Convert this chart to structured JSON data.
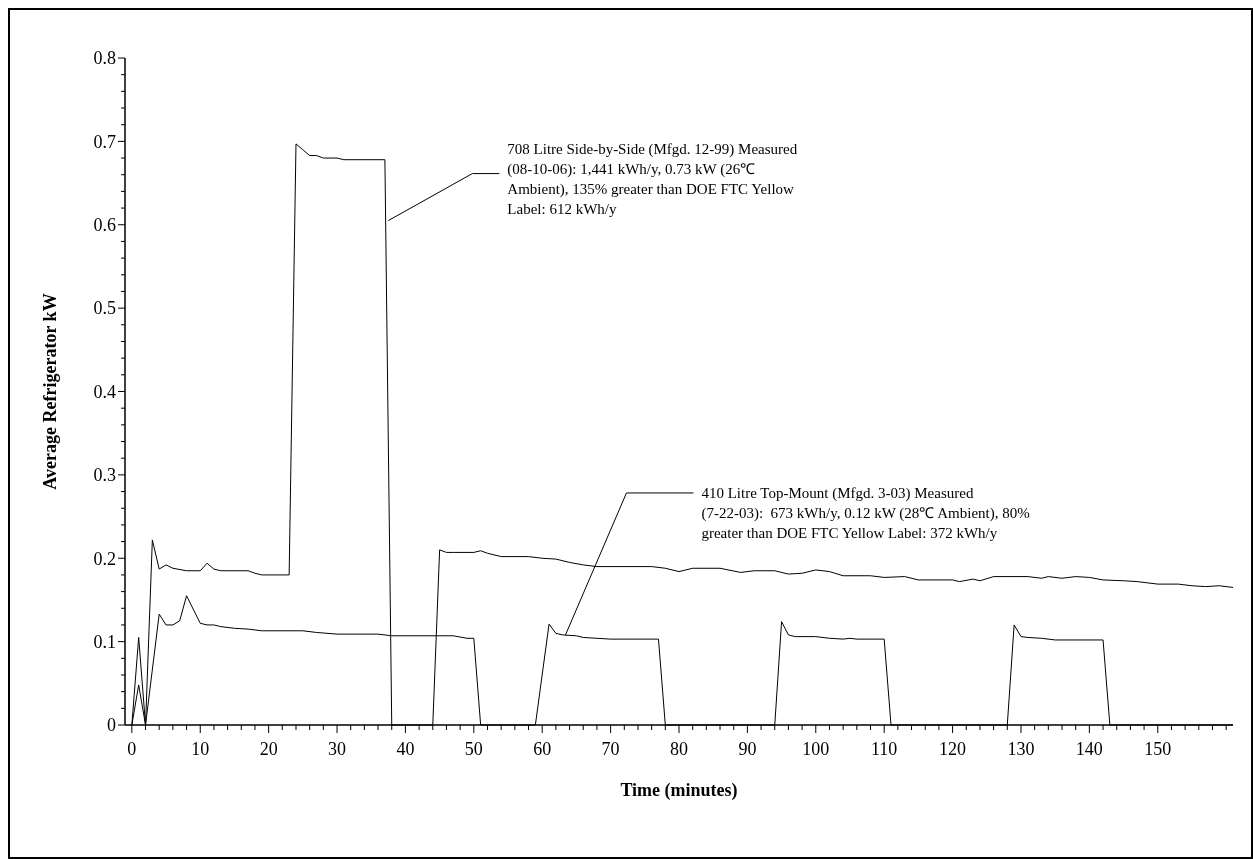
{
  "chart_data": {
    "type": "line",
    "xlabel": "Time (minutes)",
    "ylabel": "Average Refrigerator kW",
    "xlim": [
      -1,
      161
    ],
    "xticks": [
      0,
      {
        "value": 2,
        "label": null
      },
      {
        "value": 4,
        "label": null
      },
      {
        "value": 6,
        "label": null
      },
      {
        "value": 8,
        "label": null
      },
      10,
      {
        "value": 12,
        "label": null
      },
      {
        "value": 14,
        "label": null
      },
      {
        "value": 16,
        "label": null
      },
      {
        "value": 18,
        "label": null
      },
      20,
      {
        "value": 22,
        "label": null
      },
      {
        "value": 24,
        "label": null
      },
      {
        "value": 26,
        "label": null
      },
      {
        "value": 28,
        "label": null
      },
      30,
      {
        "value": 32,
        "label": null
      },
      {
        "value": 34,
        "label": null
      },
      {
        "value": 36,
        "label": null
      },
      {
        "value": 38,
        "label": null
      },
      40,
      {
        "value": 42,
        "label": null
      },
      {
        "value": 44,
        "label": null
      },
      {
        "value": 46,
        "label": null
      },
      {
        "value": 48,
        "label": null
      },
      50,
      {
        "value": 52,
        "label": null
      },
      {
        "value": 54,
        "label": null
      },
      {
        "value": 56,
        "label": null
      },
      {
        "value": 58,
        "label": null
      },
      60,
      {
        "value": 62,
        "label": null
      },
      {
        "value": 64,
        "label": null
      },
      {
        "value": 66,
        "label": null
      },
      {
        "value": 68,
        "label": null
      },
      70,
      {
        "value": 72,
        "label": null
      },
      {
        "value": 74,
        "label": null
      },
      {
        "value": 76,
        "label": null
      },
      {
        "value": 78,
        "label": null
      },
      80,
      {
        "value": 82,
        "label": null
      },
      {
        "value": 84,
        "label": null
      },
      {
        "value": 86,
        "label": null
      },
      {
        "value": 88,
        "label": null
      },
      90,
      {
        "value": 92,
        "label": null
      },
      {
        "value": 94,
        "label": null
      },
      {
        "value": 96,
        "label": null
      },
      {
        "value": 98,
        "label": null
      },
      100,
      {
        "value": 102,
        "label": null
      },
      {
        "value": 104,
        "label": null
      },
      {
        "value": 106,
        "label": null
      },
      {
        "value": 108,
        "label": null
      },
      110,
      {
        "value": 112,
        "label": null
      },
      {
        "value": 114,
        "label": null
      },
      {
        "value": 116,
        "label": null
      },
      {
        "value": 118,
        "label": null
      },
      120,
      {
        "value": 122,
        "label": null
      },
      {
        "value": 124,
        "label": null
      },
      {
        "value": 126,
        "label": null
      },
      {
        "value": 128,
        "label": null
      },
      130,
      {
        "value": 132,
        "label": null
      },
      {
        "value": 134,
        "label": null
      },
      {
        "value": 136,
        "label": null
      },
      {
        "value": 138,
        "label": null
      },
      140,
      {
        "value": 142,
        "label": null
      },
      {
        "value": 144,
        "label": null
      },
      {
        "value": 146,
        "label": null
      },
      {
        "value": 148,
        "label": null
      },
      150,
      {
        "value": 152,
        "label": null
      },
      {
        "value": 154,
        "label": null
      },
      {
        "value": 156,
        "label": null
      },
      {
        "value": 158,
        "label": null
      },
      {
        "value": 160,
        "label": null
      }
    ],
    "ylim": [
      0,
      0.8
    ],
    "yticks": [
      0,
      {
        "value": 0.02,
        "label": null
      },
      {
        "value": 0.04,
        "label": null
      },
      {
        "value": 0.06,
        "label": null
      },
      {
        "value": 0.08,
        "label": null
      },
      0.1,
      {
        "value": 0.12,
        "label": null
      },
      {
        "value": 0.14,
        "label": null
      },
      {
        "value": 0.16,
        "label": null
      },
      {
        "value": 0.18,
        "label": null
      },
      0.2,
      {
        "value": 0.22,
        "label": null
      },
      {
        "value": 0.24,
        "label": null
      },
      {
        "value": 0.26,
        "label": null
      },
      {
        "value": 0.28,
        "label": null
      },
      0.3,
      {
        "value": 0.32,
        "label": null
      },
      {
        "value": 0.34,
        "label": null
      },
      {
        "value": 0.36,
        "label": null
      },
      {
        "value": 0.38,
        "label": null
      },
      0.4,
      {
        "value": 0.42,
        "label": null
      },
      {
        "value": 0.44,
        "label": null
      },
      {
        "value": 0.46,
        "label": null
      },
      {
        "value": 0.48,
        "label": null
      },
      0.5,
      {
        "value": 0.52,
        "label": null
      },
      {
        "value": 0.54,
        "label": null
      },
      {
        "value": 0.56,
        "label": null
      },
      {
        "value": 0.58,
        "label": null
      },
      0.6,
      {
        "value": 0.62,
        "label": null
      },
      {
        "value": 0.64,
        "label": null
      },
      {
        "value": 0.66,
        "label": null
      },
      {
        "value": 0.68,
        "label": null
      },
      0.7,
      {
        "value": 0.72,
        "label": null
      },
      {
        "value": 0.74,
        "label": null
      },
      {
        "value": 0.76,
        "label": null
      },
      {
        "value": 0.78,
        "label": null
      },
      0.8
    ],
    "grid": false,
    "marker": "none",
    "line_style": "solid",
    "series": [
      {
        "color": "#000000",
        "x": [
          0,
          1,
          2,
          3,
          4,
          5,
          6,
          8,
          10,
          11,
          12,
          13,
          17,
          18,
          19,
          23,
          24,
          25,
          26,
          27,
          28,
          30,
          31,
          37,
          38,
          44,
          45,
          46,
          47,
          50,
          51,
          52,
          54,
          58,
          60,
          62,
          64,
          66,
          68,
          76,
          78,
          80,
          82,
          86,
          89,
          91,
          94,
          96,
          98,
          100,
          102,
          104,
          108,
          110,
          113,
          115,
          120,
          121,
          123,
          124,
          126,
          131,
          133,
          134,
          136,
          138,
          140,
          142,
          145,
          147,
          150,
          153,
          155,
          157,
          159,
          161
        ],
        "values": [
          0,
          0.105,
          0,
          0.222,
          0.187,
          0.192,
          0.188,
          0.185,
          0.185,
          0.194,
          0.187,
          0.185,
          0.185,
          0.182,
          0.18,
          0.18,
          0.697,
          0.69,
          0.683,
          0.683,
          0.68,
          0.68,
          0.678,
          0.678,
          0,
          0,
          0.21,
          0.207,
          0.207,
          0.207,
          0.209,
          0.206,
          0.202,
          0.202,
          0.2,
          0.199,
          0.195,
          0.192,
          0.19,
          0.19,
          0.188,
          0.184,
          0.188,
          0.188,
          0.183,
          0.185,
          0.185,
          0.181,
          0.182,
          0.186,
          0.184,
          0.179,
          0.179,
          0.177,
          0.178,
          0.174,
          0.174,
          0.172,
          0.175,
          0.173,
          0.178,
          0.178,
          0.176,
          0.178,
          0.176,
          0.178,
          0.177,
          0.174,
          0.173,
          0.172,
          0.169,
          0.169,
          0.167,
          0.166,
          0.167,
          0.165
        ]
      },
      {
        "color": "#000000",
        "x": [
          0,
          1,
          2,
          4,
          5,
          6,
          7,
          8,
          10,
          11,
          12,
          13,
          15,
          17,
          19,
          25,
          27,
          30,
          36,
          38,
          47,
          49,
          50,
          51,
          59,
          61,
          62,
          63,
          65,
          66,
          68,
          70,
          77,
          78,
          94,
          95,
          96,
          97,
          100,
          102,
          104,
          105,
          106,
          110,
          111,
          128,
          129,
          130,
          131,
          133,
          135,
          142,
          143,
          161
        ],
        "values": [
          0,
          0.048,
          0,
          0.133,
          0.12,
          0.12,
          0.125,
          0.155,
          0.122,
          0.12,
          0.12,
          0.118,
          0.116,
          0.115,
          0.113,
          0.113,
          0.111,
          0.109,
          0.109,
          0.107,
          0.107,
          0.104,
          0.104,
          0,
          0,
          0.121,
          0.11,
          0.108,
          0.107,
          0.105,
          0.104,
          0.103,
          0.103,
          0,
          0,
          0.124,
          0.108,
          0.106,
          0.106,
          0.104,
          0.103,
          0.104,
          0.103,
          0.103,
          0,
          0,
          0.12,
          0.106,
          0.105,
          0.104,
          0.102,
          0.102,
          0,
          0
        ]
      }
    ],
    "annotations": [
      {
        "text": "708 Litre Side-by-Side (Mfgd. 12-99) Measured (08-10-06): 1,441 kWh/y, 0.73 kW (26℃ Ambient), 135% greater than DOE FTC Yellow Label: 612 kWh/y",
        "x": 37.5,
        "y": 0.605
      },
      {
        "text": "410 Litre Top-Mount (Mfgd. 3-03) Measured (7-22-03):  673 kWh/y, 0.12 kW (28℃ Ambient), 80% greater than DOE FTC Yellow Label: 372 kWh/y",
        "x": 63.4,
        "y": 0.108
      }
    ]
  }
}
